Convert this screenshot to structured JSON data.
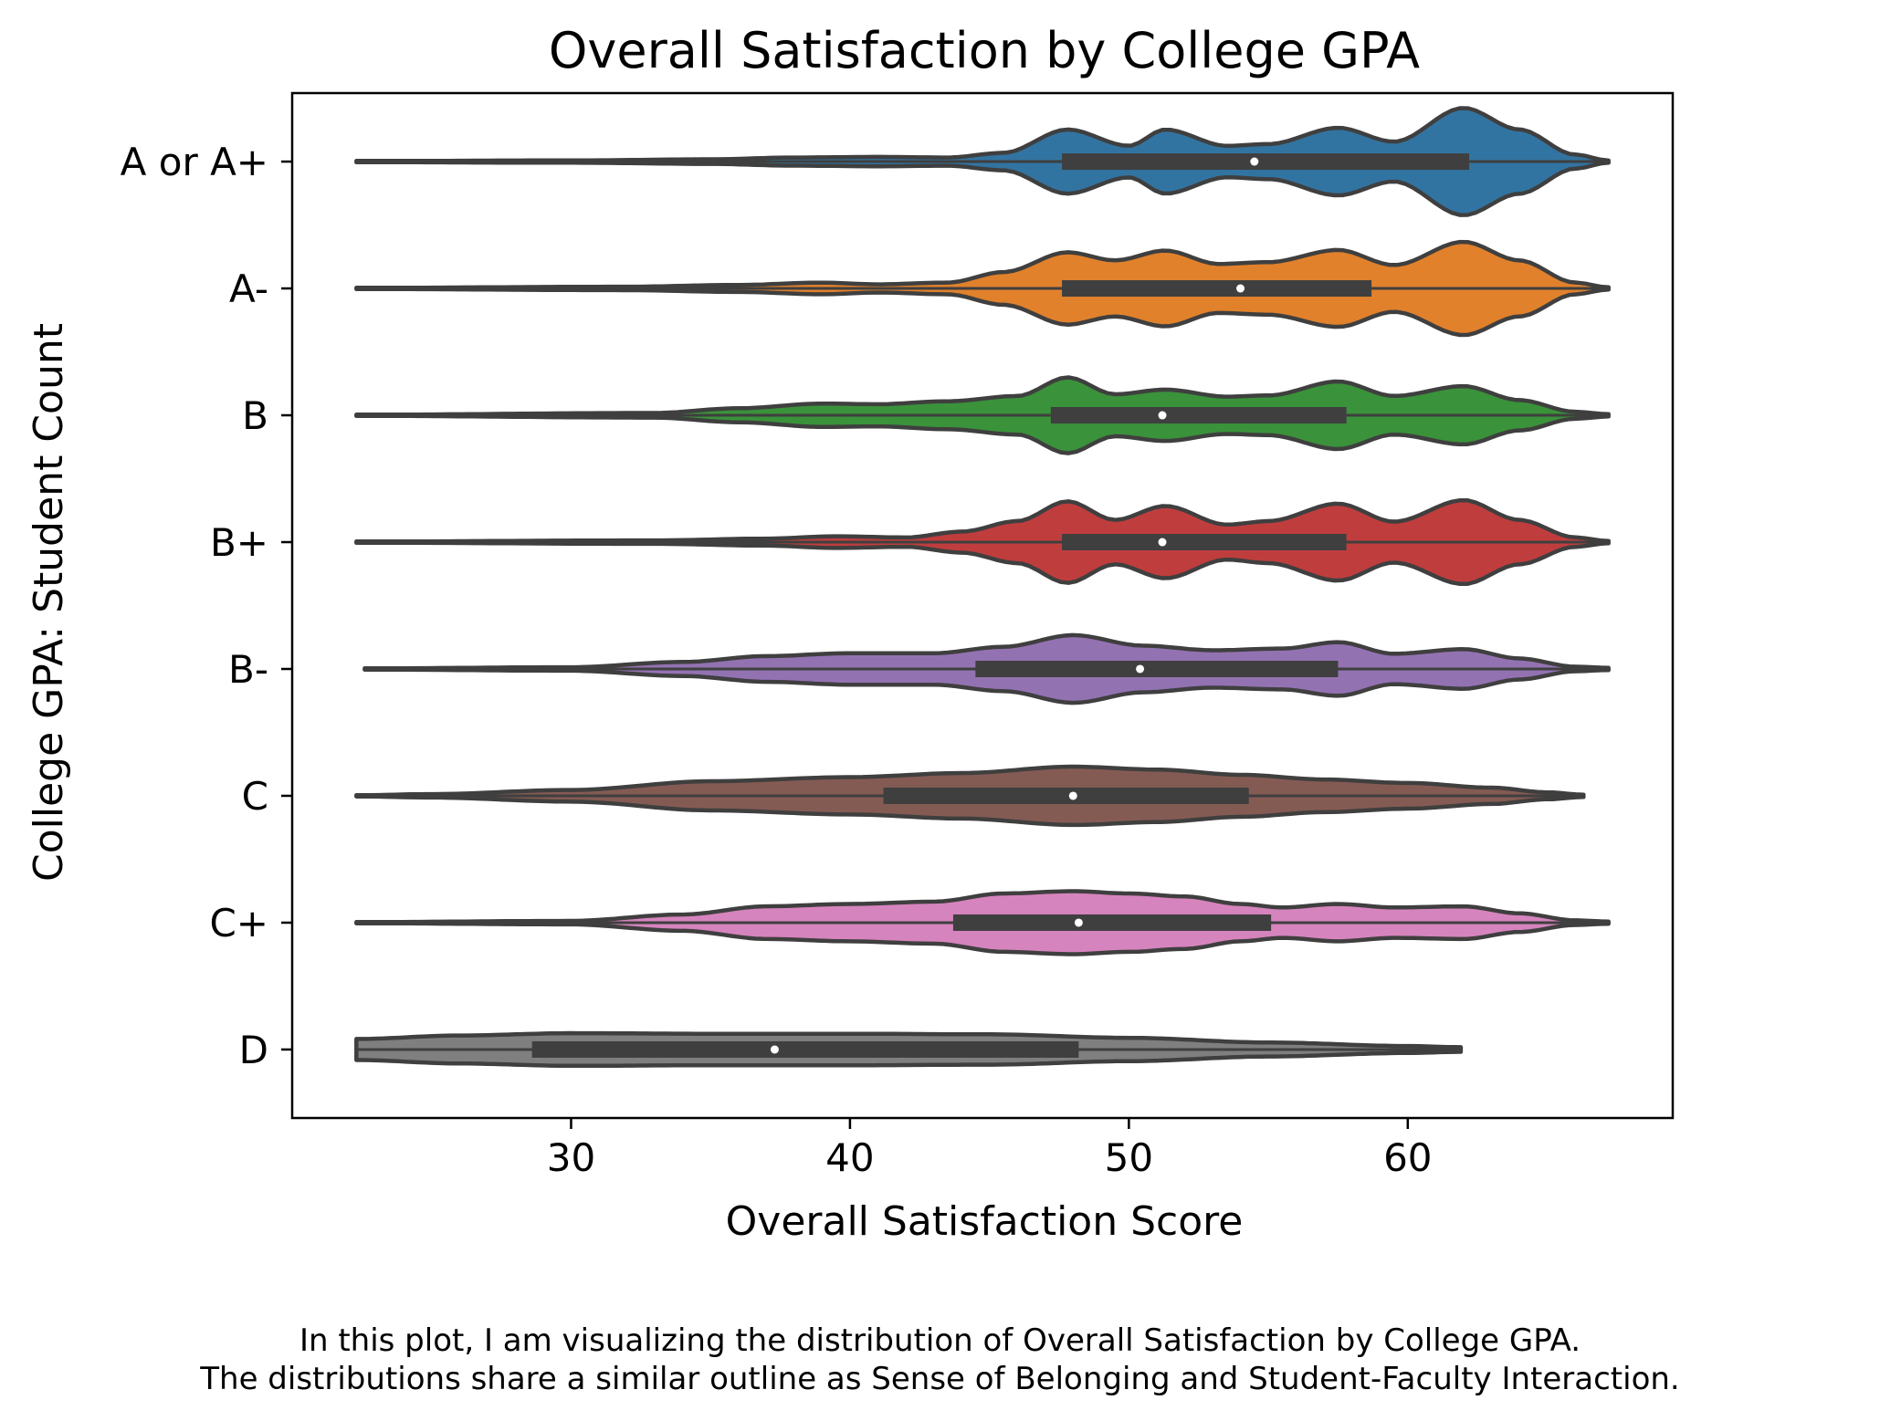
{
  "chart_data": {
    "type": "violin",
    "orientation": "horizontal",
    "title": "Overall Satisfaction by College GPA",
    "xlabel": "Overall Satisfaction Score",
    "ylabel": "College GPA: Student Count",
    "xlim": [
      20,
      69.5
    ],
    "xticks": [
      30,
      40,
      50,
      60
    ],
    "categories": [
      "A or A+",
      "A-",
      "B",
      "B+",
      "B-",
      "C",
      "C+",
      "D"
    ],
    "colors": [
      "#3274a1",
      "#e1812c",
      "#3a923a",
      "#c03d3e",
      "#9372b2",
      "#845b53",
      "#d684bd",
      "#7f7f7f"
    ],
    "series": [
      {
        "category": "A or A+",
        "min": 22.3,
        "max": 67.2,
        "q1": 47.6,
        "median": 54.5,
        "q3": 62.2,
        "density": [
          [
            22.3,
            0.01
          ],
          [
            30,
            0.02
          ],
          [
            35,
            0.04
          ],
          [
            38,
            0.07
          ],
          [
            41,
            0.08
          ],
          [
            43.5,
            0.07
          ],
          [
            45.5,
            0.15
          ],
          [
            47.8,
            0.55
          ],
          [
            50,
            0.27
          ],
          [
            51.3,
            0.55
          ],
          [
            53.5,
            0.27
          ],
          [
            55,
            0.3
          ],
          [
            57.5,
            0.58
          ],
          [
            59.5,
            0.34
          ],
          [
            62,
            0.92
          ],
          [
            64,
            0.55
          ],
          [
            66,
            0.12
          ],
          [
            67.2,
            0.02
          ]
        ]
      },
      {
        "category": "A-",
        "min": 22.3,
        "max": 67.2,
        "q1": 47.6,
        "median": 54.0,
        "q3": 58.7,
        "density": [
          [
            22.3,
            0.01
          ],
          [
            32,
            0.03
          ],
          [
            36,
            0.06
          ],
          [
            39,
            0.1
          ],
          [
            41,
            0.07
          ],
          [
            43.5,
            0.1
          ],
          [
            45.5,
            0.28
          ],
          [
            47.8,
            0.62
          ],
          [
            49.5,
            0.48
          ],
          [
            51.3,
            0.65
          ],
          [
            53.2,
            0.42
          ],
          [
            55,
            0.45
          ],
          [
            57.5,
            0.66
          ],
          [
            59.5,
            0.4
          ],
          [
            62,
            0.8
          ],
          [
            64,
            0.48
          ],
          [
            66,
            0.1
          ],
          [
            67.2,
            0.02
          ]
        ]
      },
      {
        "category": "B",
        "min": 22.3,
        "max": 67.2,
        "q1": 47.2,
        "median": 51.2,
        "q3": 57.8,
        "density": [
          [
            22.3,
            0.01
          ],
          [
            33,
            0.04
          ],
          [
            36,
            0.12
          ],
          [
            39,
            0.2
          ],
          [
            41,
            0.19
          ],
          [
            43.5,
            0.24
          ],
          [
            46,
            0.33
          ],
          [
            47.8,
            0.65
          ],
          [
            49.5,
            0.36
          ],
          [
            51.3,
            0.44
          ],
          [
            53.5,
            0.32
          ],
          [
            55,
            0.34
          ],
          [
            57.5,
            0.58
          ],
          [
            59.5,
            0.33
          ],
          [
            62,
            0.5
          ],
          [
            64,
            0.26
          ],
          [
            66,
            0.06
          ],
          [
            67.2,
            0.02
          ]
        ]
      },
      {
        "category": "B+",
        "min": 22.3,
        "max": 67.2,
        "q1": 47.6,
        "median": 51.2,
        "q3": 57.8,
        "density": [
          [
            22.3,
            0.01
          ],
          [
            33,
            0.03
          ],
          [
            37,
            0.06
          ],
          [
            39.5,
            0.1
          ],
          [
            42,
            0.08
          ],
          [
            44,
            0.18
          ],
          [
            46,
            0.36
          ],
          [
            47.8,
            0.7
          ],
          [
            49.5,
            0.38
          ],
          [
            51.3,
            0.62
          ],
          [
            53.5,
            0.3
          ],
          [
            55,
            0.36
          ],
          [
            57.5,
            0.66
          ],
          [
            59.5,
            0.35
          ],
          [
            62,
            0.72
          ],
          [
            64,
            0.38
          ],
          [
            66,
            0.08
          ],
          [
            67.2,
            0.02
          ]
        ]
      },
      {
        "category": "B-",
        "min": 22.6,
        "max": 67.2,
        "q1": 44.5,
        "median": 50.4,
        "q3": 57.5,
        "density": [
          [
            22.6,
            0.01
          ],
          [
            30,
            0.03
          ],
          [
            34,
            0.12
          ],
          [
            37,
            0.22
          ],
          [
            40,
            0.27
          ],
          [
            43,
            0.27
          ],
          [
            45.5,
            0.38
          ],
          [
            48,
            0.58
          ],
          [
            50.5,
            0.4
          ],
          [
            53,
            0.32
          ],
          [
            55.5,
            0.35
          ],
          [
            57.5,
            0.46
          ],
          [
            59.5,
            0.26
          ],
          [
            62,
            0.34
          ],
          [
            64,
            0.18
          ],
          [
            66,
            0.04
          ],
          [
            67.2,
            0.02
          ]
        ]
      },
      {
        "category": "C",
        "min": 22.3,
        "max": 66.3,
        "q1": 41.2,
        "median": 48.0,
        "q3": 54.3,
        "density": [
          [
            22.3,
            0.01
          ],
          [
            25,
            0.03
          ],
          [
            30,
            0.1
          ],
          [
            35,
            0.25
          ],
          [
            40,
            0.32
          ],
          [
            44,
            0.39
          ],
          [
            48,
            0.5
          ],
          [
            51,
            0.45
          ],
          [
            54,
            0.36
          ],
          [
            57,
            0.28
          ],
          [
            60,
            0.22
          ],
          [
            63,
            0.14
          ],
          [
            65,
            0.06
          ],
          [
            66.3,
            0.02
          ]
        ]
      },
      {
        "category": "C+",
        "min": 22.3,
        "max": 67.2,
        "q1": 43.7,
        "median": 48.2,
        "q3": 55.1,
        "density": [
          [
            22.3,
            0.01
          ],
          [
            30,
            0.03
          ],
          [
            34,
            0.14
          ],
          [
            37,
            0.28
          ],
          [
            40,
            0.32
          ],
          [
            43,
            0.36
          ],
          [
            45.5,
            0.5
          ],
          [
            48,
            0.54
          ],
          [
            50,
            0.5
          ],
          [
            52,
            0.45
          ],
          [
            54,
            0.32
          ],
          [
            55.5,
            0.26
          ],
          [
            57.5,
            0.32
          ],
          [
            59.5,
            0.26
          ],
          [
            62,
            0.28
          ],
          [
            64,
            0.16
          ],
          [
            66,
            0.04
          ],
          [
            67.2,
            0.02
          ]
        ]
      },
      {
        "category": "D",
        "min": 22.3,
        "max": 61.9,
        "q1": 28.6,
        "median": 37.3,
        "q3": 48.2,
        "density": [
          [
            22.3,
            0.18
          ],
          [
            26,
            0.24
          ],
          [
            30,
            0.28
          ],
          [
            35,
            0.27
          ],
          [
            40,
            0.27
          ],
          [
            45,
            0.26
          ],
          [
            50,
            0.2
          ],
          [
            55,
            0.12
          ],
          [
            60,
            0.06
          ],
          [
            61.9,
            0.04
          ]
        ]
      }
    ]
  },
  "caption": {
    "line1": "In this plot, I am visualizing the distribution of Overall Satisfaction by College GPA.",
    "line2": "The distributions share a similar outline as Sense of Belonging and Student-Faculty Interaction."
  }
}
